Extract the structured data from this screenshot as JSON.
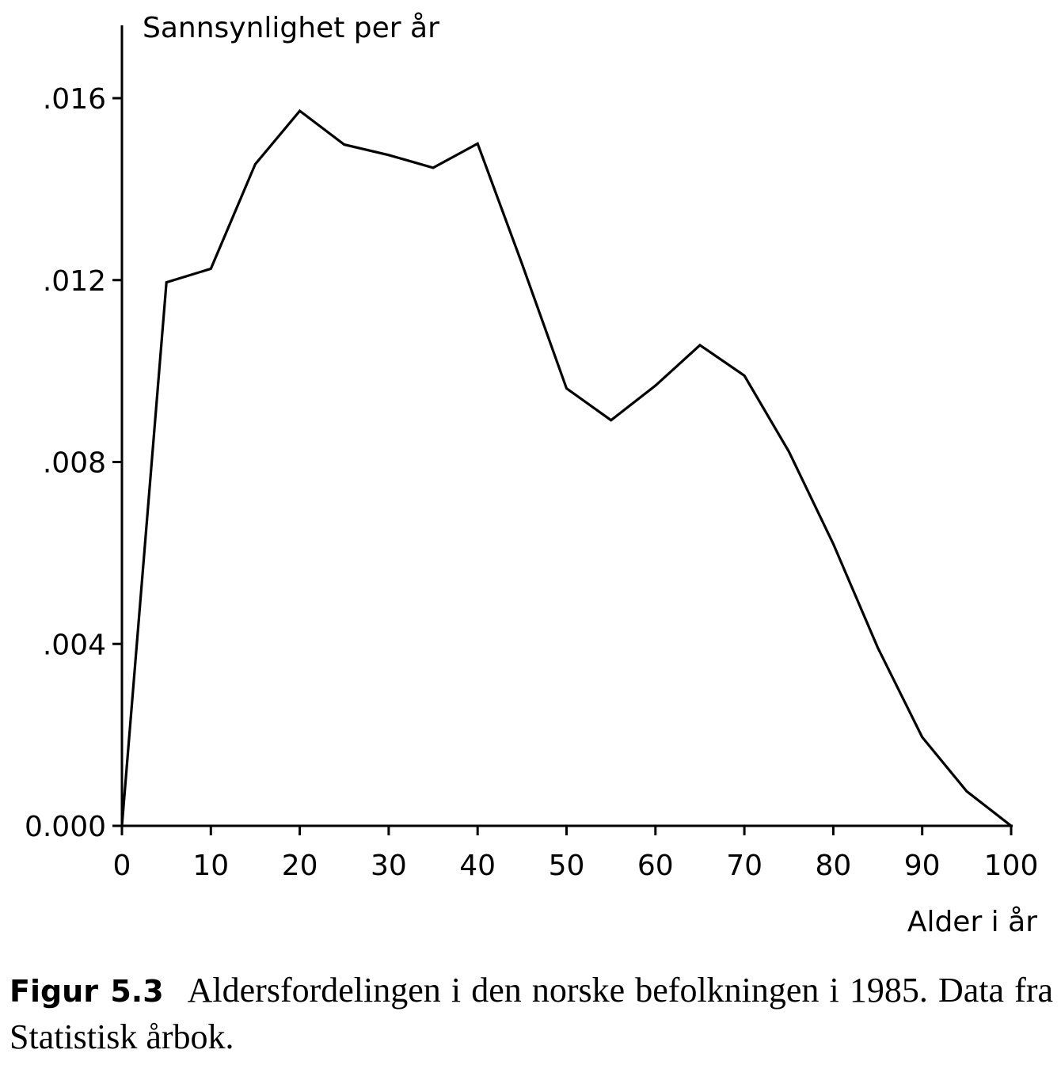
{
  "chart_data": {
    "type": "line",
    "ylabel": "Sannsynlighet per år",
    "xlabel": "Alder i år",
    "xlim": [
      0,
      100
    ],
    "ylim": [
      0,
      0.016
    ],
    "x_ticks": [
      0,
      10,
      20,
      30,
      40,
      50,
      60,
      70,
      80,
      90,
      100
    ],
    "x_tick_labels": [
      "0",
      "10",
      "20",
      "30",
      "40",
      "50",
      "60",
      "70",
      "80",
      "90",
      "100"
    ],
    "y_ticks": [
      0,
      0.004,
      0.008,
      0.012,
      0.016
    ],
    "y_tick_labels": [
      "0.000",
      ".004",
      ".008",
      ".012",
      ".016"
    ],
    "grid": false,
    "legend": "none",
    "line_color": "#000000",
    "series": [
      {
        "x": [
          0,
          5,
          10,
          15,
          20,
          25,
          30,
          35,
          40,
          45,
          50,
          55,
          60,
          65,
          70,
          75,
          80,
          85,
          90,
          95,
          100
        ],
        "y": [
          0.0,
          0.01195,
          0.01225,
          0.01455,
          0.01572,
          0.01498,
          0.01475,
          0.01447,
          0.015,
          0.01235,
          0.00962,
          0.00892,
          0.00968,
          0.01057,
          0.0099,
          0.00823,
          0.0062,
          0.00392,
          0.00195,
          0.00076,
          0.0
        ]
      }
    ]
  },
  "caption": {
    "label": "Figur 5.3",
    "text": "Aldersfordelingen i den norske befolkningen i 1985. Data fra Statistisk årbok."
  }
}
